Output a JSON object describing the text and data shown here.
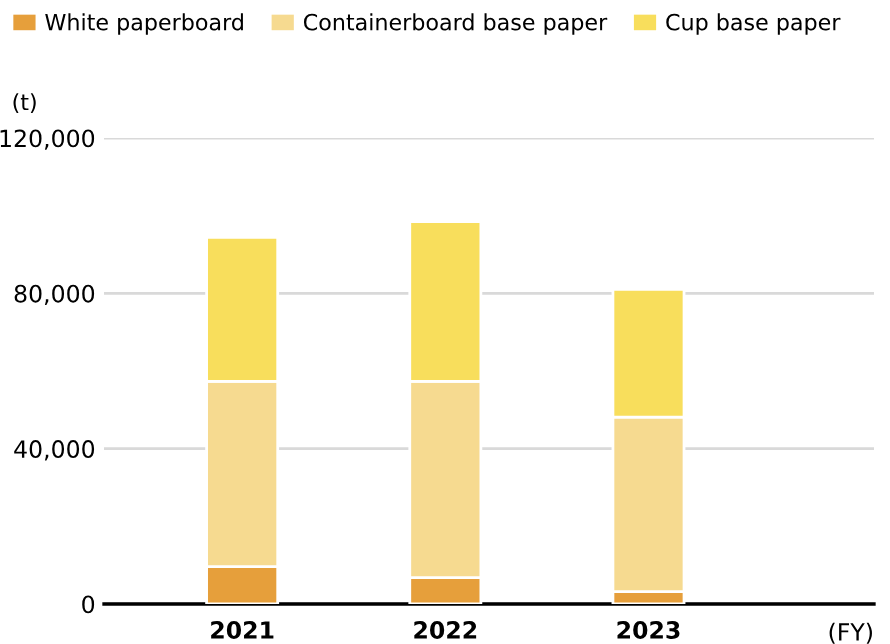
{
  "chart_data": {
    "type": "bar",
    "stacked": true,
    "categories": [
      "2021",
      "2022",
      "2023"
    ],
    "series": [
      {
        "name": "White paperboard",
        "color": "#e69f3b",
        "values": [
          9600,
          6800,
          3200
        ]
      },
      {
        "name": "Containerboard base paper",
        "color": "#f6da90",
        "values": [
          47700,
          50500,
          44900
        ]
      },
      {
        "name": "Cup base paper",
        "color": "#f8de5c",
        "values": [
          37100,
          41200,
          32900
        ]
      }
    ],
    "ylabel": "(t)",
    "xlabel": "(FY)",
    "ylim": [
      0,
      120000
    ],
    "yticks": [
      {
        "value": 0,
        "label": "0"
      },
      {
        "value": 40000,
        "label": "40,000"
      },
      {
        "value": 80000,
        "label": "80,000"
      },
      {
        "value": 120000,
        "label": "120,000"
      }
    ],
    "grid": "y",
    "legend": "top left"
  }
}
